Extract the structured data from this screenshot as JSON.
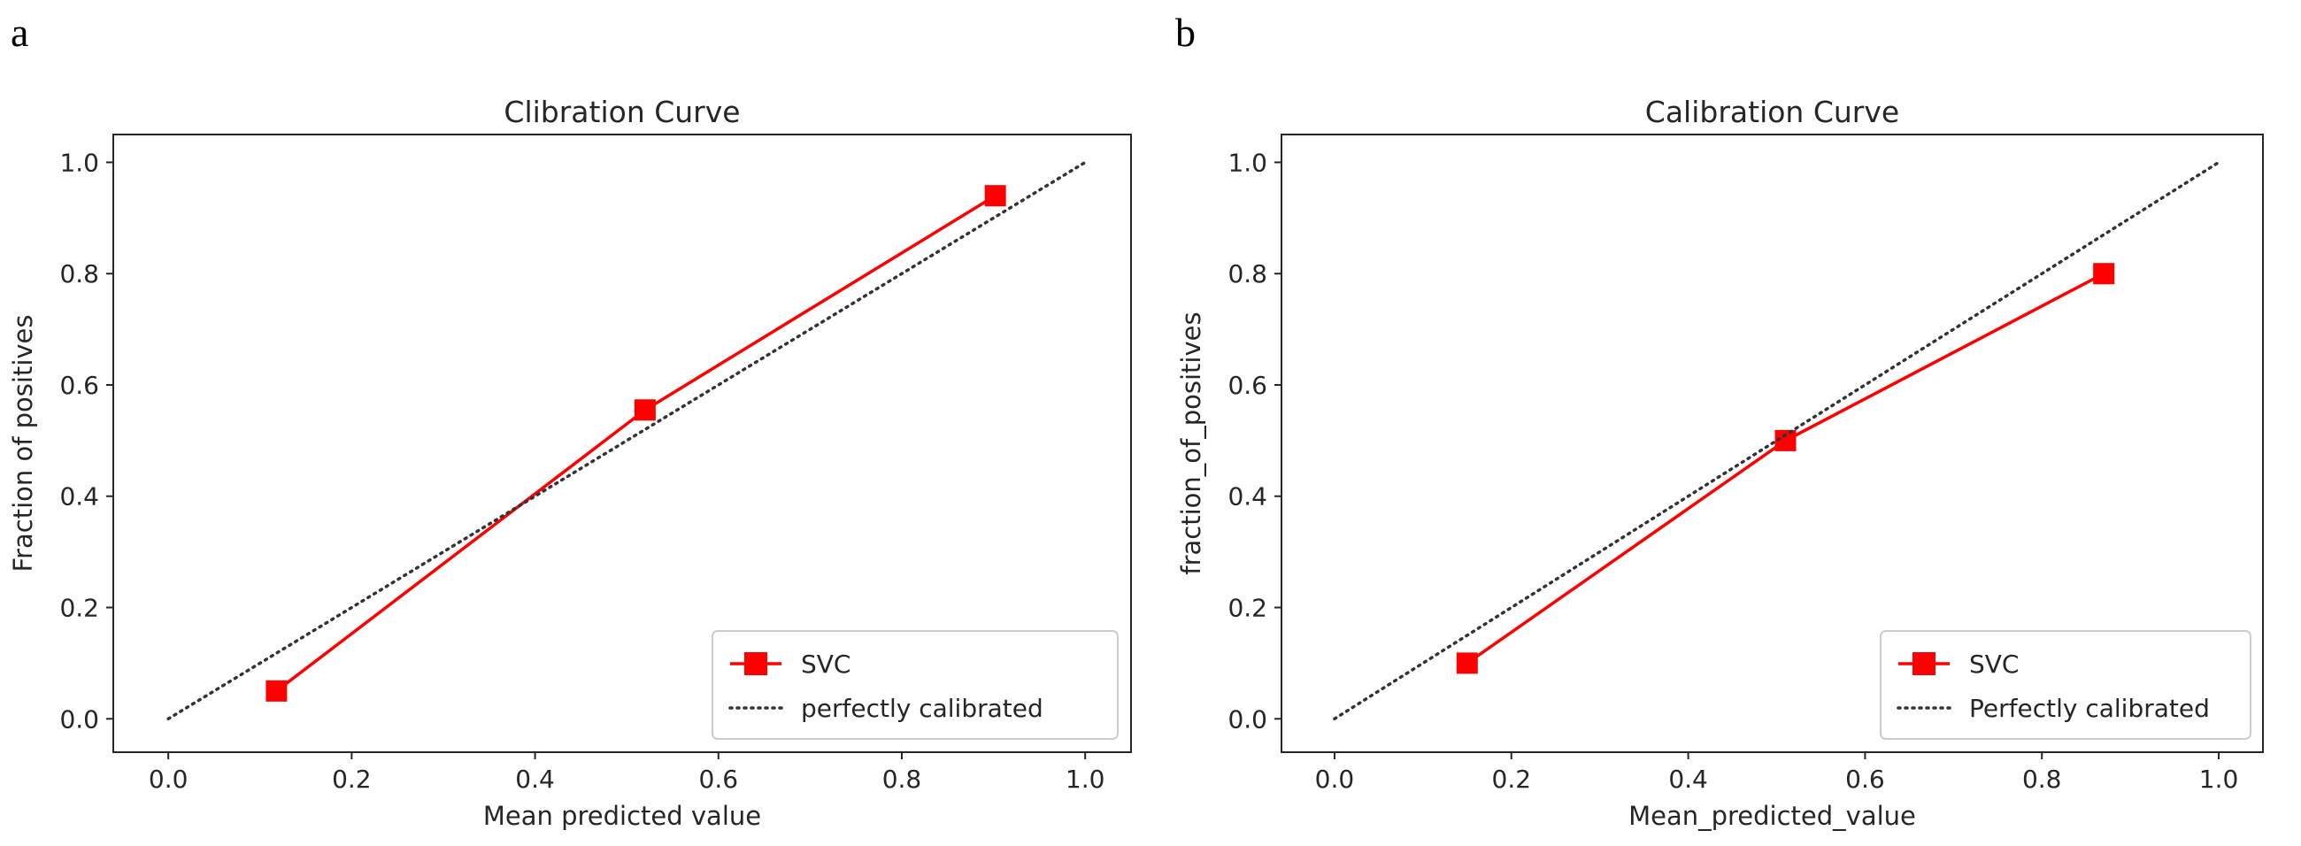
{
  "colors": {
    "series": "#ff0000",
    "diagonal": "#333333",
    "axes": "#262626",
    "legend_border": "#cccccc"
  },
  "chart_data": [
    {
      "panel_label": "a",
      "type": "line",
      "title": "Clibration Curve",
      "xlabel": "Mean predicted value",
      "ylabel": "Fraction of positives",
      "xlim": [
        -0.06,
        1.05
      ],
      "ylim": [
        -0.06,
        1.05
      ],
      "xticks": [
        0.0,
        0.2,
        0.4,
        0.6,
        0.8,
        1.0
      ],
      "yticks": [
        0.0,
        0.2,
        0.4,
        0.6,
        0.8,
        1.0
      ],
      "xtick_labels": [
        "0.0",
        "0.2",
        "0.4",
        "0.6",
        "0.8",
        "1.0"
      ],
      "ytick_labels": [
        "0.0",
        "0.2",
        "0.4",
        "0.6",
        "0.8",
        "1.0"
      ],
      "grid": false,
      "legend_position": "bottom-right",
      "series": [
        {
          "name": "SVC",
          "style": "solid-square-markers",
          "x": [
            0.118,
            0.52,
            0.902
          ],
          "y": [
            0.05,
            0.555,
            0.94
          ]
        },
        {
          "name": "perfectly calibrated",
          "style": "dotted",
          "x": [
            0,
            1
          ],
          "y": [
            0,
            1
          ]
        }
      ]
    },
    {
      "panel_label": "b",
      "type": "line",
      "title": "Calibration Curve",
      "xlabel": "Mean_predicted_value",
      "ylabel": "fraction_of_positives",
      "xlim": [
        -0.06,
        1.05
      ],
      "ylim": [
        -0.06,
        1.05
      ],
      "xticks": [
        0.0,
        0.2,
        0.4,
        0.6,
        0.8,
        1.0
      ],
      "yticks": [
        0.0,
        0.2,
        0.4,
        0.6,
        0.8,
        1.0
      ],
      "xtick_labels": [
        "0.0",
        "0.2",
        "0.4",
        "0.6",
        "0.8",
        "1.0"
      ],
      "ytick_labels": [
        "0.0",
        "0.2",
        "0.4",
        "0.6",
        "0.8",
        "1.0"
      ],
      "grid": false,
      "legend_position": "bottom-right",
      "series": [
        {
          "name": "SVC",
          "style": "solid-square-markers",
          "x": [
            0.15,
            0.51,
            0.87
          ],
          "y": [
            0.1,
            0.5,
            0.8
          ]
        },
        {
          "name": "Perfectly calibrated",
          "style": "dotted",
          "x": [
            0,
            1
          ],
          "y": [
            0,
            1
          ]
        }
      ]
    }
  ]
}
